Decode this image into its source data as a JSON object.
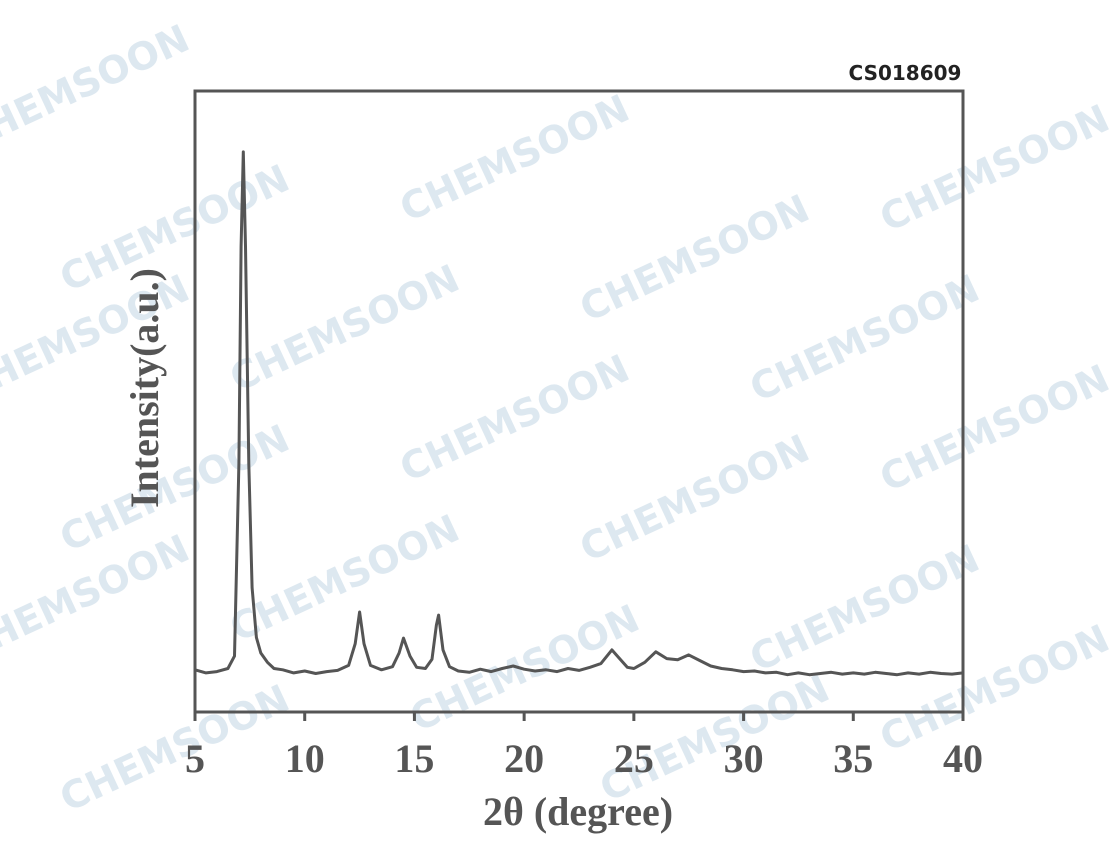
{
  "chart_data": {
    "type": "line",
    "code_label": "CS018609",
    "watermark": "CHEMSOON",
    "xlabel": "2θ (degree)",
    "ylabel": "Intensity(a.u.)",
    "xlim": [
      5,
      40
    ],
    "xticks": [
      5,
      10,
      15,
      20,
      25,
      30,
      35,
      40
    ],
    "ylim": [
      0,
      100
    ],
    "series": [
      {
        "color": "#555555",
        "x": [
          5.0,
          5.5,
          6.0,
          6.5,
          6.8,
          7.0,
          7.1,
          7.2,
          7.3,
          7.45,
          7.6,
          7.8,
          8.0,
          8.3,
          8.6,
          9.0,
          9.5,
          10.0,
          10.5,
          11.0,
          11.5,
          12.0,
          12.3,
          12.5,
          12.7,
          13.0,
          13.5,
          14.0,
          14.3,
          14.5,
          14.8,
          15.1,
          15.5,
          15.8,
          16.0,
          16.1,
          16.3,
          16.6,
          17.0,
          17.5,
          18.0,
          18.5,
          19.0,
          19.5,
          20.0,
          20.5,
          21.0,
          21.5,
          22.0,
          22.5,
          23.0,
          23.5,
          24.0,
          24.3,
          24.7,
          25.0,
          25.5,
          26.0,
          26.5,
          27.0,
          27.5,
          28.0,
          28.5,
          29.0,
          29.5,
          30.0,
          30.5,
          31.0,
          31.5,
          32.0,
          32.5,
          33.0,
          33.5,
          34.0,
          34.5,
          35.0,
          35.5,
          36.0,
          36.5,
          37.0,
          37.5,
          38.0,
          38.5,
          39.0,
          39.5,
          40.0
        ],
        "values": [
          6.8,
          6.3,
          6.5,
          7.0,
          9,
          40,
          75,
          90.2,
          75,
          40,
          20,
          12,
          9.5,
          8.0,
          7.0,
          6.8,
          6.3,
          6.6,
          6.2,
          6.5,
          6.7,
          7.5,
          11,
          16.1,
          11,
          7.5,
          6.8,
          7.3,
          9.5,
          11.9,
          9,
          7.2,
          7.0,
          8.5,
          14,
          15.6,
          10,
          7.3,
          6.6,
          6.4,
          6.9,
          6.5,
          7.0,
          7.4,
          6.9,
          6.6,
          6.8,
          6.5,
          7.0,
          6.7,
          7.2,
          7.8,
          10.0,
          8.8,
          7.2,
          7.0,
          8.0,
          9.7,
          8.6,
          8.4,
          9.2,
          8.3,
          7.4,
          7.0,
          6.8,
          6.5,
          6.6,
          6.3,
          6.4,
          6.0,
          6.3,
          6.0,
          6.2,
          6.4,
          6.1,
          6.3,
          6.1,
          6.4,
          6.2,
          6.0,
          6.3,
          6.1,
          6.4,
          6.2,
          6.1,
          6.3
        ]
      }
    ]
  }
}
